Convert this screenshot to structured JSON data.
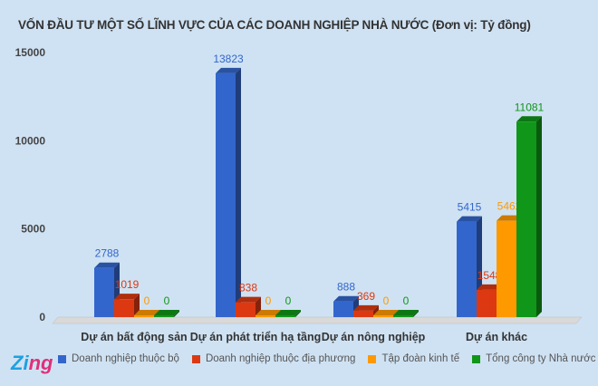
{
  "chart_data": {
    "type": "bar",
    "title": "VỐN ĐẦU TƯ MỘT SỐ LĨNH VỰC CỦA CÁC DOANH NGHIỆP NHÀ NƯỚC (Đơn vị: Tỷ đồng)",
    "categories": [
      "Dự án bất động sản",
      "Dự án phát triển hạ tầng",
      "Dự án nông nghiệp",
      "Dự án khác"
    ],
    "series": [
      {
        "name": "Doanh nghiệp thuộc bộ",
        "color": "#3366cc",
        "values": [
          2788,
          13823,
          888,
          5415
        ]
      },
      {
        "name": "Doanh nghiệp thuộc địa phương",
        "color": "#dc3912",
        "values": [
          1019,
          838,
          369,
          1548
        ]
      },
      {
        "name": "Tập đoàn kinh tế",
        "color": "#ff9900",
        "values": [
          0,
          0,
          0,
          5462
        ]
      },
      {
        "name": "Tổng công ty Nhà nước",
        "color": "#109618",
        "values": [
          0,
          0,
          0,
          11081
        ]
      }
    ],
    "ylim": [
      0,
      15000
    ],
    "yticks": [
      0,
      5000,
      10000,
      15000
    ],
    "grid": false,
    "legend": "bottom",
    "style": "3d"
  },
  "logo": {
    "text": "Zing",
    "suffix": "vn"
  }
}
